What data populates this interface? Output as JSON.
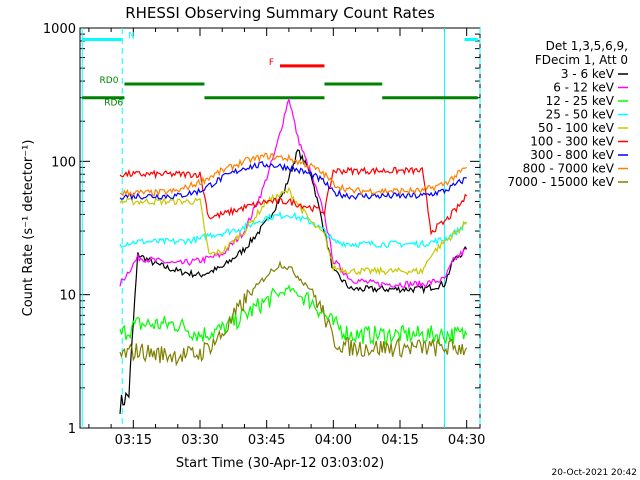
{
  "chart_data": {
    "type": "line",
    "title": "RHESSI Observing Summary Count Rates",
    "xlabel": "Start Time (30-Apr-12 03:03:02)",
    "ylabel": "Count Rate (s⁻¹ detector⁻¹)",
    "yscale": "log",
    "ylim": [
      1,
      1000
    ],
    "xlim_minutes": [
      3.0,
      93.0
    ],
    "x_ticks": [
      {
        "minute": 15,
        "label": "03:15"
      },
      {
        "minute": 30,
        "label": "03:30"
      },
      {
        "minute": 45,
        "label": "03:45"
      },
      {
        "minute": 60,
        "label": "04:00"
      },
      {
        "minute": 75,
        "label": "04:15"
      },
      {
        "minute": 90,
        "label": "04:30"
      }
    ],
    "y_ticks": [
      {
        "value": 1,
        "label": "1"
      },
      {
        "value": 10,
        "label": "10"
      },
      {
        "value": 100,
        "label": "100"
      },
      {
        "value": 1000,
        "label": "1000"
      }
    ],
    "legend_header": [
      "Det 1,3,5,6,9,",
      "FDecim 1, Att 0"
    ],
    "legend_position": "right",
    "series": [
      {
        "name": "3 - 6 keV",
        "color": "#000000",
        "points": [
          [
            12,
            1.5
          ],
          [
            14,
            1.8
          ],
          [
            16,
            20
          ],
          [
            20,
            17
          ],
          [
            25,
            15
          ],
          [
            30,
            14
          ],
          [
            35,
            16
          ],
          [
            40,
            22
          ],
          [
            45,
            35
          ],
          [
            49,
            60
          ],
          [
            52,
            120
          ],
          [
            55,
            80
          ],
          [
            58,
            30
          ],
          [
            60,
            15
          ],
          [
            64,
            11
          ],
          [
            70,
            11
          ],
          [
            75,
            11
          ],
          [
            80,
            11
          ],
          [
            85,
            12
          ],
          [
            87,
            18
          ],
          [
            90,
            22
          ]
        ]
      },
      {
        "name": "6 - 12 keV",
        "color": "#ff00ff",
        "points": [
          [
            12,
            12
          ],
          [
            16,
            19
          ],
          [
            20,
            18
          ],
          [
            25,
            17
          ],
          [
            30,
            18
          ],
          [
            35,
            20
          ],
          [
            40,
            30
          ],
          [
            44,
            60
          ],
          [
            47,
            120
          ],
          [
            50,
            300
          ],
          [
            52,
            150
          ],
          [
            55,
            80
          ],
          [
            58,
            40
          ],
          [
            60,
            18
          ],
          [
            64,
            13
          ],
          [
            70,
            12
          ],
          [
            75,
            12
          ],
          [
            80,
            12
          ],
          [
            85,
            13
          ],
          [
            87,
            18
          ],
          [
            90,
            22
          ]
        ]
      },
      {
        "name": "12 - 25 keV",
        "color": "#00ff00",
        "points": [
          [
            12,
            5
          ],
          [
            16,
            6
          ],
          [
            20,
            6
          ],
          [
            25,
            6
          ],
          [
            30,
            5
          ],
          [
            35,
            5.5
          ],
          [
            40,
            7
          ],
          [
            45,
            9
          ],
          [
            50,
            11
          ],
          [
            55,
            9
          ],
          [
            60,
            6
          ],
          [
            64,
            5
          ],
          [
            70,
            5
          ],
          [
            75,
            5
          ],
          [
            80,
            5
          ],
          [
            85,
            5
          ],
          [
            90,
            5
          ]
        ]
      },
      {
        "name": "25 - 50 keV",
        "color": "#00ffff",
        "points": [
          [
            12,
            24
          ],
          [
            16,
            25
          ],
          [
            20,
            25
          ],
          [
            25,
            25
          ],
          [
            30,
            26
          ],
          [
            32,
            28
          ],
          [
            35,
            29
          ],
          [
            40,
            32
          ],
          [
            45,
            38
          ],
          [
            50,
            40
          ],
          [
            55,
            35
          ],
          [
            58,
            30
          ],
          [
            60,
            25
          ],
          [
            64,
            24
          ],
          [
            70,
            24
          ],
          [
            75,
            24
          ],
          [
            80,
            24
          ],
          [
            85,
            26
          ],
          [
            88,
            30
          ],
          [
            90,
            35
          ]
        ]
      },
      {
        "name": "50 - 100 keV",
        "color": "#c8c800",
        "points": [
          [
            12,
            50
          ],
          [
            16,
            50
          ],
          [
            20,
            50
          ],
          [
            25,
            50
          ],
          [
            30,
            50
          ],
          [
            32,
            20
          ],
          [
            35,
            21
          ],
          [
            40,
            30
          ],
          [
            45,
            50
          ],
          [
            50,
            60
          ],
          [
            55,
            35
          ],
          [
            58,
            28
          ],
          [
            60,
            16
          ],
          [
            64,
            15
          ],
          [
            70,
            15
          ],
          [
            75,
            15
          ],
          [
            80,
            15
          ],
          [
            82,
            20
          ],
          [
            85,
            25
          ],
          [
            88,
            30
          ],
          [
            90,
            35
          ]
        ]
      },
      {
        "name": "100 - 300 keV",
        "color": "#ff0000",
        "points": [
          [
            12,
            80
          ],
          [
            16,
            80
          ],
          [
            20,
            80
          ],
          [
            25,
            80
          ],
          [
            30,
            80
          ],
          [
            32,
            38
          ],
          [
            35,
            40
          ],
          [
            40,
            45
          ],
          [
            45,
            50
          ],
          [
            50,
            50
          ],
          [
            55,
            45
          ],
          [
            58,
            42
          ],
          [
            60,
            85
          ],
          [
            64,
            85
          ],
          [
            70,
            85
          ],
          [
            75,
            85
          ],
          [
            80,
            85
          ],
          [
            82,
            30
          ],
          [
            85,
            35
          ],
          [
            88,
            45
          ],
          [
            90,
            55
          ]
        ]
      },
      {
        "name": "300 - 800 keV",
        "color": "#0000ff",
        "points": [
          [
            12,
            55
          ],
          [
            16,
            55
          ],
          [
            20,
            55
          ],
          [
            25,
            55
          ],
          [
            30,
            60
          ],
          [
            35,
            75
          ],
          [
            40,
            90
          ],
          [
            45,
            95
          ],
          [
            50,
            90
          ],
          [
            55,
            80
          ],
          [
            58,
            70
          ],
          [
            60,
            58
          ],
          [
            64,
            55
          ],
          [
            70,
            55
          ],
          [
            75,
            55
          ],
          [
            80,
            55
          ],
          [
            85,
            60
          ],
          [
            88,
            68
          ],
          [
            90,
            75
          ]
        ]
      },
      {
        "name": "800 - 7000 keV",
        "color": "#ff8000",
        "points": [
          [
            12,
            58
          ],
          [
            16,
            58
          ],
          [
            20,
            58
          ],
          [
            25,
            60
          ],
          [
            30,
            70
          ],
          [
            35,
            85
          ],
          [
            40,
            100
          ],
          [
            45,
            110
          ],
          [
            50,
            105
          ],
          [
            55,
            92
          ],
          [
            58,
            80
          ],
          [
            60,
            68
          ],
          [
            64,
            60
          ],
          [
            70,
            60
          ],
          [
            75,
            60
          ],
          [
            80,
            60
          ],
          [
            85,
            68
          ],
          [
            88,
            80
          ],
          [
            90,
            90
          ]
        ]
      },
      {
        "name": "7000 - 15000 keV",
        "color": "#808000",
        "points": [
          [
            12,
            3.5
          ],
          [
            16,
            3.8
          ],
          [
            20,
            3.6
          ],
          [
            25,
            3.5
          ],
          [
            30,
            3.6
          ],
          [
            35,
            5
          ],
          [
            40,
            9
          ],
          [
            45,
            14
          ],
          [
            48,
            17
          ],
          [
            50,
            16
          ],
          [
            55,
            11
          ],
          [
            58,
            7
          ],
          [
            60,
            4.5
          ],
          [
            64,
            4
          ],
          [
            70,
            4
          ],
          [
            75,
            4
          ],
          [
            80,
            4
          ],
          [
            85,
            4
          ],
          [
            90,
            4
          ]
        ]
      }
    ],
    "annotations": [
      {
        "label": "N",
        "color": "#00ffff",
        "segments": [
          [
            3.5,
            12.5
          ],
          [
            89.5,
            92.5
          ]
        ],
        "level": 820
      },
      {
        "label": "F",
        "color": "#ff0000",
        "segments": [
          [
            48,
            58
          ]
        ],
        "level": 520
      },
      {
        "label": "RD0",
        "color": "#008000",
        "segments": [
          [
            13,
            31
          ],
          [
            58,
            71
          ]
        ],
        "level": 380
      },
      {
        "label": "RD6",
        "color": "#008000",
        "segments": [
          [
            3.5,
            13
          ],
          [
            31,
            58
          ],
          [
            71,
            92.5
          ]
        ],
        "level": 300
      }
    ],
    "vertical_lines": [
      {
        "minute": 3.5,
        "color": "#00ffff",
        "style": "solid"
      },
      {
        "minute": 12.5,
        "color": "#00ffff",
        "style": "dashed"
      },
      {
        "minute": 85,
        "color": "#00ffff",
        "style": "solid"
      },
      {
        "minute": 93,
        "color": "#00ffff",
        "style": "dashed"
      }
    ],
    "footer_timestamp": "20-Oct-2021 20:42"
  }
}
